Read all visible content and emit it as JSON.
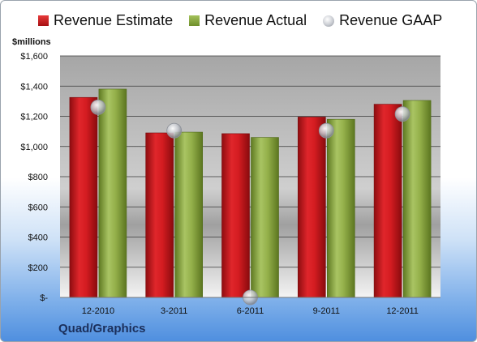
{
  "legend": {
    "estimate": "Revenue Estimate",
    "actual": "Revenue Actual",
    "gaap": "Revenue GAAP"
  },
  "unit_label": "$millions",
  "company": "Quad/Graphics",
  "colors": {
    "estimate": "#c8151b",
    "actual": "#8aa63e",
    "gaap": "#c9ccd2",
    "plot_bg_top": "#a8a8a8",
    "plot_bg_bottom": "#ffffff"
  },
  "chart_data": {
    "type": "bar",
    "categories": [
      "12-2010",
      "3-2011",
      "6-2011",
      "9-2011",
      "12-2011"
    ],
    "series": [
      {
        "name": "Revenue Estimate",
        "values": [
          1325,
          1090,
          1085,
          1195,
          1280
        ]
      },
      {
        "name": "Revenue Actual",
        "values": [
          1380,
          1095,
          1060,
          1180,
          1305
        ]
      },
      {
        "name": "Revenue GAAP",
        "values": [
          1260,
          1105,
          0,
          1105,
          1215
        ]
      }
    ],
    "ylabel": "$millions",
    "ylim": [
      0,
      1600
    ],
    "yticks": [
      0,
      200,
      400,
      600,
      800,
      1000,
      1200,
      1400,
      1600
    ],
    "ytick_labels": [
      "$-",
      "$200",
      "$400",
      "$600",
      "$800",
      "$1,000",
      "$1,200",
      "$1,400",
      "$1,600"
    ],
    "grid": true,
    "legend_position": "top"
  }
}
